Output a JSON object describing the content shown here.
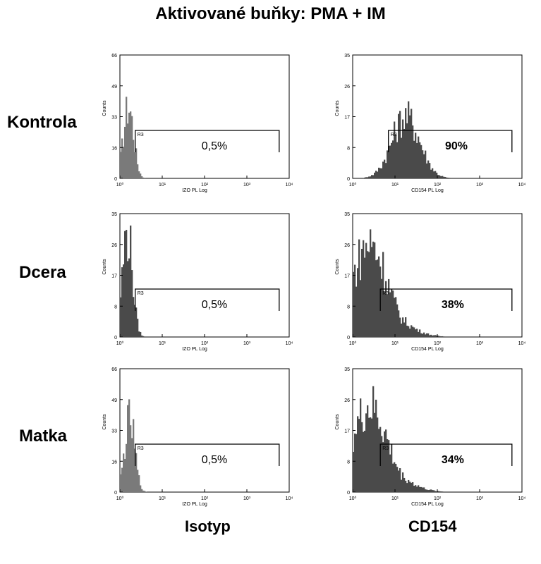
{
  "title": "Aktivované buňky: PMA + IM",
  "rows": [
    "Kontrola",
    "Dcera",
    "Matka"
  ],
  "columns": [
    "Isotyp",
    "CD154"
  ],
  "chart_data": [
    {
      "type": "histogram",
      "row": "Kontrola",
      "column": "Isotyp",
      "ylabel": "Counts",
      "xlabel": "IZO PL Log",
      "yticks": [
        "0",
        "16",
        "33",
        "49",
        "66"
      ],
      "ylim": [
        0,
        66
      ],
      "xticks": [
        "10⁰",
        "10¹",
        "10²",
        "10³",
        "10⁴"
      ],
      "xscale": "log",
      "xlim": [
        1,
        10000
      ],
      "gate": {
        "name": "R3",
        "from": 2.3,
        "to": 5800
      },
      "percent": "0,5%",
      "percent_bold": false,
      "fill": "#7a7a7a",
      "peak_x": 1.6,
      "peak_y": 44
    },
    {
      "type": "histogram",
      "row": "Kontrola",
      "column": "CD154",
      "ylabel": "Counts",
      "xlabel": "CD154 PL Log",
      "yticks": [
        "0",
        "8",
        "17",
        "26",
        "35"
      ],
      "ylim": [
        0,
        35
      ],
      "xticks": [
        "10⁰",
        "10¹",
        "10²",
        "10³",
        "10⁴"
      ],
      "xscale": "log",
      "xlim": [
        1,
        10000
      ],
      "gate": {
        "name": "R3",
        "from": 7,
        "to": 5800
      },
      "percent": "90%",
      "percent_bold": true,
      "fill": "#4a4a4a",
      "peak_x": 18,
      "peak_y": 20
    },
    {
      "type": "histogram",
      "row": "Dcera",
      "column": "Isotyp",
      "ylabel": "Counts",
      "xlabel": "IZO PL Log",
      "yticks": [
        "0",
        "8",
        "17",
        "26",
        "35"
      ],
      "ylim": [
        0,
        35
      ],
      "xticks": [
        "10⁰",
        "10¹",
        "10²",
        "10³",
        "10⁴"
      ],
      "xscale": "log",
      "xlim": [
        1,
        10000
      ],
      "gate": {
        "name": "R3",
        "from": 2.3,
        "to": 5800
      },
      "percent": "0,5%",
      "percent_bold": false,
      "fill": "#4a4a4a",
      "peak_x": 1.5,
      "peak_y": 34
    },
    {
      "type": "histogram",
      "row": "Dcera",
      "column": "CD154",
      "ylabel": "Counts",
      "xlabel": "CD154 PL Log",
      "yticks": [
        "0",
        "8",
        "17",
        "26",
        "35"
      ],
      "ylim": [
        0,
        35
      ],
      "xticks": [
        "10⁰",
        "10¹",
        "10²",
        "10³",
        "10⁴"
      ],
      "xscale": "log",
      "xlim": [
        1,
        10000
      ],
      "gate": {
        "name": "R3",
        "from": 4.5,
        "to": 5800
      },
      "percent": "38%",
      "percent_bold": true,
      "fill": "#4a4a4a",
      "peak_x": 2.5,
      "peak_y": 30
    },
    {
      "type": "histogram",
      "row": "Matka",
      "column": "Isotyp",
      "ylabel": "Counts",
      "xlabel": "IZO PL Log",
      "yticks": [
        "0",
        "16",
        "33",
        "49",
        "66"
      ],
      "ylim": [
        0,
        66
      ],
      "xticks": [
        "10⁰",
        "10¹",
        "10²",
        "10³",
        "10⁴"
      ],
      "xscale": "log",
      "xlim": [
        1,
        10000
      ],
      "gate": {
        "name": "R3",
        "from": 2.3,
        "to": 5800
      },
      "percent": "0,5%",
      "percent_bold": false,
      "fill": "#7a7a7a",
      "peak_x": 1.7,
      "peak_y": 44
    },
    {
      "type": "histogram",
      "row": "Matka",
      "column": "CD154",
      "ylabel": "Counts",
      "xlabel": "CD154 PL Log",
      "yticks": [
        "0",
        "8",
        "17",
        "26",
        "35"
      ],
      "ylim": [
        0,
        35
      ],
      "xticks": [
        "10⁰",
        "10¹",
        "10²",
        "10³",
        "10⁴"
      ],
      "xscale": "log",
      "xlim": [
        1,
        10000
      ],
      "gate": {
        "name": "R3",
        "from": 4.5,
        "to": 5800
      },
      "percent": "34%",
      "percent_bold": true,
      "fill": "#4a4a4a",
      "peak_x": 2.5,
      "peak_y": 27
    }
  ]
}
